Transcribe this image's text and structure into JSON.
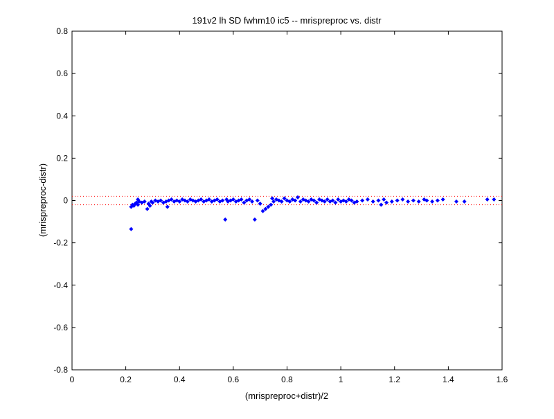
{
  "chart_data": {
    "type": "scatter",
    "title": "191v2 lh SD fwhm10 ic5 -- mrispreproc vs. distr",
    "xlabel": "(mrispreproc+distr)/2",
    "ylabel": "(mrispreproc-distr)",
    "xlim": [
      0,
      1.6
    ],
    "ylim": [
      -0.8,
      0.8
    ],
    "xticks": [
      0,
      0.2,
      0.4,
      0.6,
      0.8,
      1,
      1.2,
      1.4,
      1.6
    ],
    "xtick_labels": [
      "0",
      "0.2",
      "0.4",
      "0.6",
      "0.8",
      "1",
      "1.2",
      "1.4",
      "1.6"
    ],
    "yticks": [
      -0.8,
      -0.6,
      -0.4,
      -0.2,
      0,
      0.2,
      0.4,
      0.6,
      0.8
    ],
    "ytick_labels": [
      "-0.8",
      "-0.6",
      "-0.4",
      "-0.2",
      "0",
      "0.2",
      "0.4",
      "0.6",
      "0.8"
    ],
    "grid": false,
    "reference_lines": [
      {
        "y": 0.02,
        "color": "#ff0000",
        "style": "dotted"
      },
      {
        "y": -0.02,
        "color": "#ff0000",
        "style": "dotted"
      }
    ],
    "marker_color": "#0000ff",
    "marker": "diamond",
    "points": [
      [
        0.22,
        -0.135
      ],
      [
        0.22,
        -0.03
      ],
      [
        0.225,
        -0.02
      ],
      [
        0.23,
        -0.025
      ],
      [
        0.235,
        -0.015
      ],
      [
        0.24,
        -0.01
      ],
      [
        0.245,
        -0.02
      ],
      [
        0.245,
        0.005
      ],
      [
        0.25,
        -0.005
      ],
      [
        0.26,
        -0.01
      ],
      [
        0.27,
        -0.005
      ],
      [
        0.28,
        -0.04
      ],
      [
        0.285,
        -0.015
      ],
      [
        0.29,
        -0.025
      ],
      [
        0.295,
        -0.005
      ],
      [
        0.3,
        -0.01
      ],
      [
        0.31,
        0.0
      ],
      [
        0.32,
        -0.005
      ],
      [
        0.33,
        0.0
      ],
      [
        0.34,
        -0.01
      ],
      [
        0.35,
        -0.005
      ],
      [
        0.355,
        -0.03
      ],
      [
        0.36,
        0.0
      ],
      [
        0.37,
        0.005
      ],
      [
        0.38,
        -0.005
      ],
      [
        0.39,
        0.0
      ],
      [
        0.4,
        -0.005
      ],
      [
        0.41,
        0.005
      ],
      [
        0.42,
        0.0
      ],
      [
        0.43,
        -0.005
      ],
      [
        0.44,
        0.005
      ],
      [
        0.45,
        0.0
      ],
      [
        0.46,
        -0.005
      ],
      [
        0.47,
        0.0
      ],
      [
        0.48,
        0.005
      ],
      [
        0.49,
        -0.005
      ],
      [
        0.5,
        0.0
      ],
      [
        0.51,
        0.005
      ],
      [
        0.52,
        -0.005
      ],
      [
        0.53,
        0.0
      ],
      [
        0.54,
        0.005
      ],
      [
        0.55,
        -0.005
      ],
      [
        0.56,
        0.0
      ],
      [
        0.57,
        -0.09
      ],
      [
        0.575,
        0.005
      ],
      [
        0.58,
        -0.005
      ],
      [
        0.59,
        0.0
      ],
      [
        0.6,
        0.005
      ],
      [
        0.61,
        -0.005
      ],
      [
        0.62,
        0.0
      ],
      [
        0.63,
        0.005
      ],
      [
        0.64,
        -0.01
      ],
      [
        0.65,
        0.0
      ],
      [
        0.66,
        0.005
      ],
      [
        0.67,
        -0.005
      ],
      [
        0.68,
        -0.09
      ],
      [
        0.69,
        0.0
      ],
      [
        0.7,
        -0.015
      ],
      [
        0.71,
        -0.05
      ],
      [
        0.72,
        -0.04
      ],
      [
        0.73,
        -0.03
      ],
      [
        0.74,
        -0.02
      ],
      [
        0.745,
        0.01
      ],
      [
        0.75,
        -0.005
      ],
      [
        0.76,
        0.005
      ],
      [
        0.77,
        0.0
      ],
      [
        0.78,
        -0.005
      ],
      [
        0.79,
        0.01
      ],
      [
        0.8,
        0.0
      ],
      [
        0.81,
        -0.005
      ],
      [
        0.82,
        0.005
      ],
      [
        0.83,
        0.0
      ],
      [
        0.84,
        0.015
      ],
      [
        0.85,
        -0.005
      ],
      [
        0.86,
        0.005
      ],
      [
        0.87,
        0.0
      ],
      [
        0.88,
        -0.005
      ],
      [
        0.89,
        0.005
      ],
      [
        0.9,
        0.0
      ],
      [
        0.91,
        -0.01
      ],
      [
        0.92,
        0.005
      ],
      [
        0.93,
        0.0
      ],
      [
        0.94,
        -0.005
      ],
      [
        0.95,
        0.005
      ],
      [
        0.96,
        -0.005
      ],
      [
        0.97,
        0.0
      ],
      [
        0.98,
        -0.01
      ],
      [
        0.99,
        0.005
      ],
      [
        1.0,
        -0.005
      ],
      [
        1.01,
        0.0
      ],
      [
        1.02,
        -0.005
      ],
      [
        1.03,
        0.005
      ],
      [
        1.04,
        0.0
      ],
      [
        1.05,
        -0.01
      ],
      [
        1.06,
        -0.005
      ],
      [
        1.08,
        0.0
      ],
      [
        1.1,
        0.005
      ],
      [
        1.12,
        -0.005
      ],
      [
        1.14,
        0.0
      ],
      [
        1.15,
        -0.02
      ],
      [
        1.16,
        0.005
      ],
      [
        1.17,
        -0.01
      ],
      [
        1.19,
        -0.005
      ],
      [
        1.21,
        0.0
      ],
      [
        1.23,
        0.005
      ],
      [
        1.25,
        -0.005
      ],
      [
        1.27,
        0.0
      ],
      [
        1.29,
        -0.005
      ],
      [
        1.31,
        0.005
      ],
      [
        1.32,
        0.0
      ],
      [
        1.34,
        -0.005
      ],
      [
        1.36,
        0.0
      ],
      [
        1.38,
        0.005
      ],
      [
        1.43,
        -0.005
      ],
      [
        1.46,
        -0.005
      ],
      [
        1.545,
        0.005
      ],
      [
        1.57,
        0.005
      ]
    ]
  }
}
